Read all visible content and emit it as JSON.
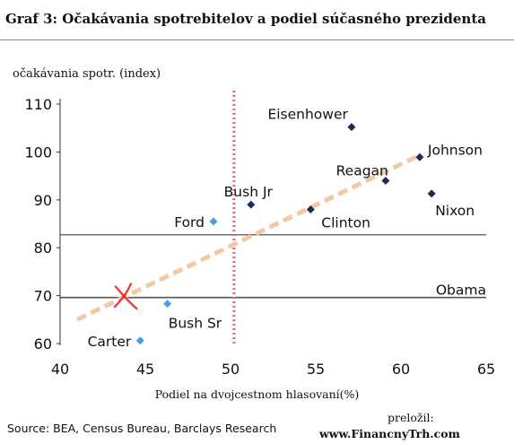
{
  "header": {
    "title": "Graf 3: Očakávania spotrebitelov a podiel súčasného prezidenta"
  },
  "footer": {
    "source": "Source: BEA, Census Bureau, Barclays Research",
    "translated_label": "preložil:",
    "translated_by": "www.FinancnyTrh.com"
  },
  "colors": {
    "dark_marker": "#1f2a5c",
    "light_marker": "#4a9fe3",
    "trend": "#f2c9a4",
    "vline": "#e06a78",
    "hline": "#555555",
    "cross": "#e02020"
  },
  "chart_data": {
    "type": "scatter",
    "title": "Graf 3: Očakávania spotrebitelov a podiel súčasného prezidenta",
    "xlabel": "Podiel na dvojcestnom hlasovaní(%)",
    "ylabel": "očakávania spotr. (index)",
    "xlim": [
      40,
      65
    ],
    "ylim": [
      60,
      110
    ],
    "xticks": [
      "40",
      "45",
      "50",
      "55",
      "60",
      "65"
    ],
    "yticks": [
      "60",
      "70",
      "80",
      "90",
      "100",
      "110"
    ],
    "grid": false,
    "points": [
      {
        "label": "Eisenhower",
        "x": 57.1,
        "y": 105.2,
        "style": "dark"
      },
      {
        "label": "Johnson",
        "x": 61.1,
        "y": 98.9,
        "style": "dark"
      },
      {
        "label": "Reagan",
        "x": 59.1,
        "y": 94.0,
        "style": "dark"
      },
      {
        "label": "Nixon",
        "x": 61.8,
        "y": 91.3,
        "style": "dark"
      },
      {
        "label": "Bush Jr",
        "x": 51.2,
        "y": 89.0,
        "style": "dark"
      },
      {
        "label": "Clinton",
        "x": 54.7,
        "y": 88.0,
        "style": "dark"
      },
      {
        "label": "Ford",
        "x": 49.0,
        "y": 85.5,
        "style": "light"
      },
      {
        "label": "Bush Sr",
        "x": 46.3,
        "y": 68.3,
        "style": "light"
      },
      {
        "label": "Carter",
        "x": 44.7,
        "y": 60.6,
        "style": "light"
      }
    ],
    "reference_lines": [
      {
        "orientation": "horizontal",
        "value": 82.7,
        "style": "solid"
      },
      {
        "orientation": "horizontal",
        "value": 69.6,
        "style": "solid",
        "label": "Obama"
      },
      {
        "orientation": "vertical",
        "value": 50.2,
        "style": "dotted"
      }
    ],
    "trend_line": {
      "x": [
        41.0,
        61.2
      ],
      "y": [
        65.0,
        99.5
      ]
    },
    "marker": {
      "x": 43.8,
      "y": 69.6,
      "shape": "cross"
    }
  }
}
